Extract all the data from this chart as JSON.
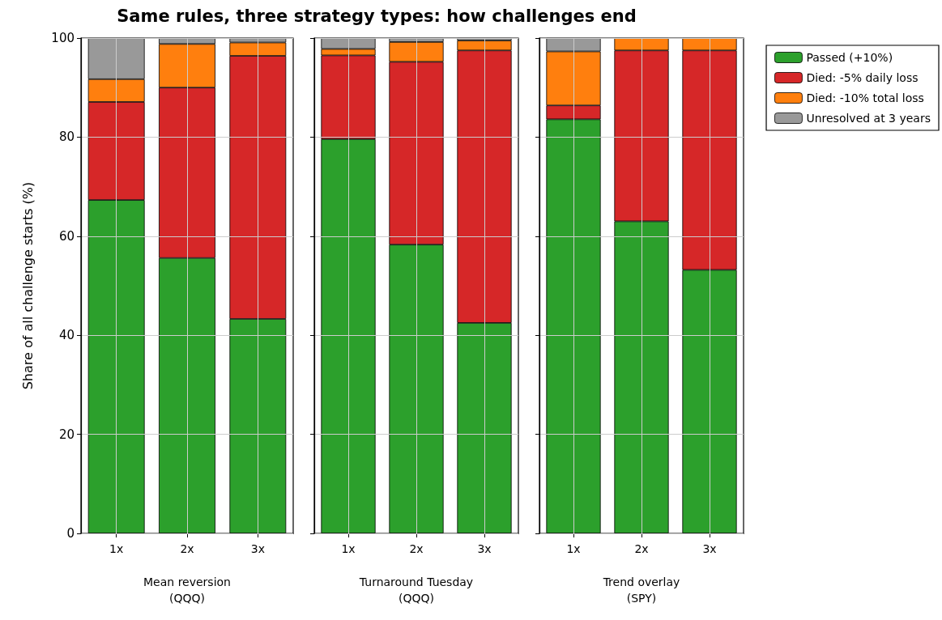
{
  "chart_data": [
    {
      "type": "bar",
      "title": "Same rules, three strategy types: how challenges end",
      "ylabel": "Share of all challenge starts (%)",
      "xlabel": "Mean reversion\n(QQQ)",
      "categories": [
        "1x",
        "2x",
        "3x"
      ],
      "stacked": true,
      "ylim": [
        0,
        100
      ],
      "yticks": [
        0,
        20,
        40,
        60,
        80,
        100
      ],
      "grid": true,
      "series": [
        {
          "color": "#2ca02c",
          "values": [
            67.3,
            55.6,
            43.3
          ]
        },
        {
          "color": "#d62728",
          "values": [
            19.8,
            34.4,
            53.1
          ]
        },
        {
          "color": "#ff7f0e",
          "values": [
            4.6,
            8.8,
            2.7
          ]
        },
        {
          "color": "#999999",
          "values": [
            8.3,
            1.2,
            0.9
          ]
        }
      ]
    },
    {
      "type": "bar",
      "xlabel": "Turnaround Tuesday\n(QQQ)",
      "categories": [
        "1x",
        "2x",
        "3x"
      ],
      "stacked": true,
      "ylim": [
        0,
        100
      ],
      "yticks": [
        0,
        20,
        40,
        60,
        80,
        100
      ],
      "grid": true,
      "tick_labels": "x",
      "series": [
        {
          "color": "#2ca02c",
          "values": [
            79.6,
            58.3,
            42.5
          ]
        },
        {
          "color": "#d62728",
          "values": [
            16.9,
            36.9,
            55.0
          ]
        },
        {
          "color": "#ff7f0e",
          "values": [
            1.3,
            4.0,
            2.0
          ]
        },
        {
          "color": "#999999",
          "values": [
            2.2,
            0.8,
            0.5
          ]
        }
      ]
    },
    {
      "type": "bar",
      "xlabel": "Trend overlay\n(SPY)",
      "categories": [
        "1x",
        "2x",
        "3x"
      ],
      "stacked": true,
      "ylim": [
        0,
        100
      ],
      "yticks": [
        0,
        20,
        40,
        60,
        80,
        100
      ],
      "grid": true,
      "tick_labels": "x",
      "legend": "right",
      "series": [
        {
          "name": "Passed (+10%)",
          "color": "#2ca02c",
          "values": [
            83.6,
            63.0,
            53.2
          ]
        },
        {
          "name": "Died: -5% daily loss",
          "color": "#d62728",
          "values": [
            2.8,
            34.5,
            44.3
          ]
        },
        {
          "name": "Died: -10% total loss",
          "color": "#ff7f0e",
          "values": [
            10.9,
            2.5,
            2.5
          ]
        },
        {
          "name": "Unresolved at 3 years",
          "color": "#999999",
          "values": [
            2.7,
            0,
            0
          ]
        }
      ]
    }
  ]
}
